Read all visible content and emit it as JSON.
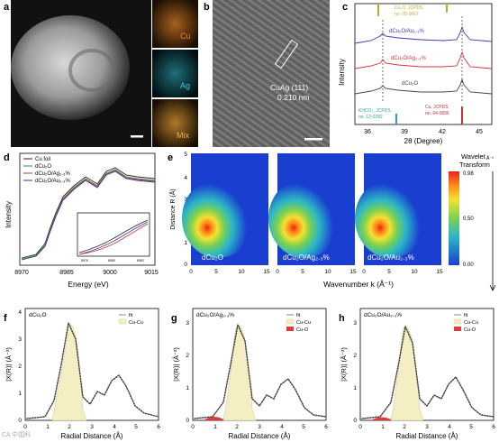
{
  "panel_a": {
    "label": "a",
    "map_labels": [
      "Cu",
      "Ag",
      "Mix"
    ],
    "map_label_colors": [
      "#e0872a",
      "#36c9d9",
      "#f2b24a"
    ]
  },
  "panel_b": {
    "label": "b",
    "annotation_line1": "CuAg (111)",
    "annotation_line2": "0.210 nm"
  },
  "panel_c": {
    "label": "c",
    "type": "line",
    "xlabel": "2θ (Degree)",
    "ylabel": "Intensity",
    "xlim": [
      35,
      46
    ],
    "xticks": [
      36,
      39,
      42,
      45
    ],
    "series": [
      {
        "name": "dCu₂O/Au₂.₃%",
        "color": "#3a3ab5"
      },
      {
        "name": "dCu₂O/Ag₂.₃%",
        "color": "#d43434"
      },
      {
        "name": "dCu₂O",
        "color": "#444444"
      }
    ],
    "refs": [
      {
        "label_line1": "Cu₂O, JCPDS",
        "label_line2": "no. 05-0667",
        "color": "#b5b023"
      },
      {
        "label_line1": "KHCO₃, JCPDS",
        "label_line2": "no. 12-0292",
        "color": "#2aa5a5"
      },
      {
        "label_line1": "Cu, JCPDS",
        "label_line2": "no. 04-0836",
        "color": "#c83232"
      }
    ]
  },
  "panel_d": {
    "label": "d",
    "type": "line",
    "xlabel": "Energy (eV)",
    "ylabel": "Intensity",
    "xlim": [
      8970,
      9015
    ],
    "xticks": [
      "8970",
      "8985",
      "9000",
      "9015"
    ],
    "legend": [
      {
        "name": "Cu foil",
        "color": "#222222"
      },
      {
        "name": "dCu₂O",
        "color": "#2e9a3a"
      },
      {
        "name": "dCu₂O/Ag₂.₃%",
        "color": "#d43434"
      },
      {
        "name": "dCu₂O/Au₂.₃%",
        "color": "#3a3ab5"
      }
    ],
    "inset": {
      "xlabel": "Energy (eV)",
      "xticks": [
        "8976",
        "8980",
        "8982"
      ]
    }
  },
  "panel_e": {
    "label": "e",
    "type": "heatmap",
    "ylabel": "Distance R (Å)",
    "xlabel": "Wavenumber k (Å⁻¹)",
    "yticks": [
      "0",
      "1",
      "2",
      "3",
      "4",
      "5"
    ],
    "xticks": [
      "0",
      "5",
      "10",
      "15"
    ],
    "maps": [
      "dCu₂O",
      "dCu₂O/Ag₂.₃%",
      "dCu₂O/Au₂.₃%"
    ],
    "colorbar": {
      "title_line1": "Wavelet",
      "title_line2": "Transform",
      "unit": "Å⁻³",
      "ticks": [
        "0.98",
        "0.50",
        "0.00"
      ]
    }
  },
  "panel_f": {
    "label": "f",
    "title": "dCu₂O",
    "xlabel": "Radial Distance (Å)",
    "ylabel": "|X(R)| (Å⁻³)",
    "xticks": [
      "0",
      "1",
      "2",
      "3",
      "4",
      "5",
      "6"
    ],
    "yticks": [
      "0",
      "1",
      "2",
      "3",
      "4"
    ],
    "legend": [
      {
        "name": "fit",
        "color": "#888888"
      },
      {
        "name": "Cu-Cu",
        "color": "#f3efc2"
      }
    ]
  },
  "panel_g": {
    "label": "g",
    "title": "dCu₂O/Ag₂.₃%",
    "xlabel": "Radial Distance (Å)",
    "ylabel": "|X(R)| (Å⁻³)",
    "xticks": [
      "0",
      "1",
      "2",
      "3",
      "4",
      "5",
      "6"
    ],
    "yticks": [
      "0",
      "1",
      "2",
      "3"
    ],
    "legend": [
      {
        "name": "fit",
        "color": "#888888"
      },
      {
        "name": "Cu-Cu",
        "color": "#f3efc2"
      },
      {
        "name": "Cu-O",
        "color": "#e03a3a"
      }
    ]
  },
  "panel_h": {
    "label": "h",
    "title": "dCu₂O/Au₂.₃%",
    "xlabel": "Radial Distance (Å)",
    "ylabel": "|X(R)| (Å⁻³)",
    "xticks": [
      "0",
      "1",
      "2",
      "3",
      "4",
      "5",
      "6"
    ],
    "yticks": [
      "0",
      "1",
      "2",
      "3"
    ],
    "legend": [
      {
        "name": "fit",
        "color": "#888888"
      },
      {
        "name": "Cu-Cu",
        "color": "#f3efc2"
      },
      {
        "name": "Cu-O",
        "color": "#e03a3a"
      }
    ]
  },
  "watermark": "CA 中国科"
}
